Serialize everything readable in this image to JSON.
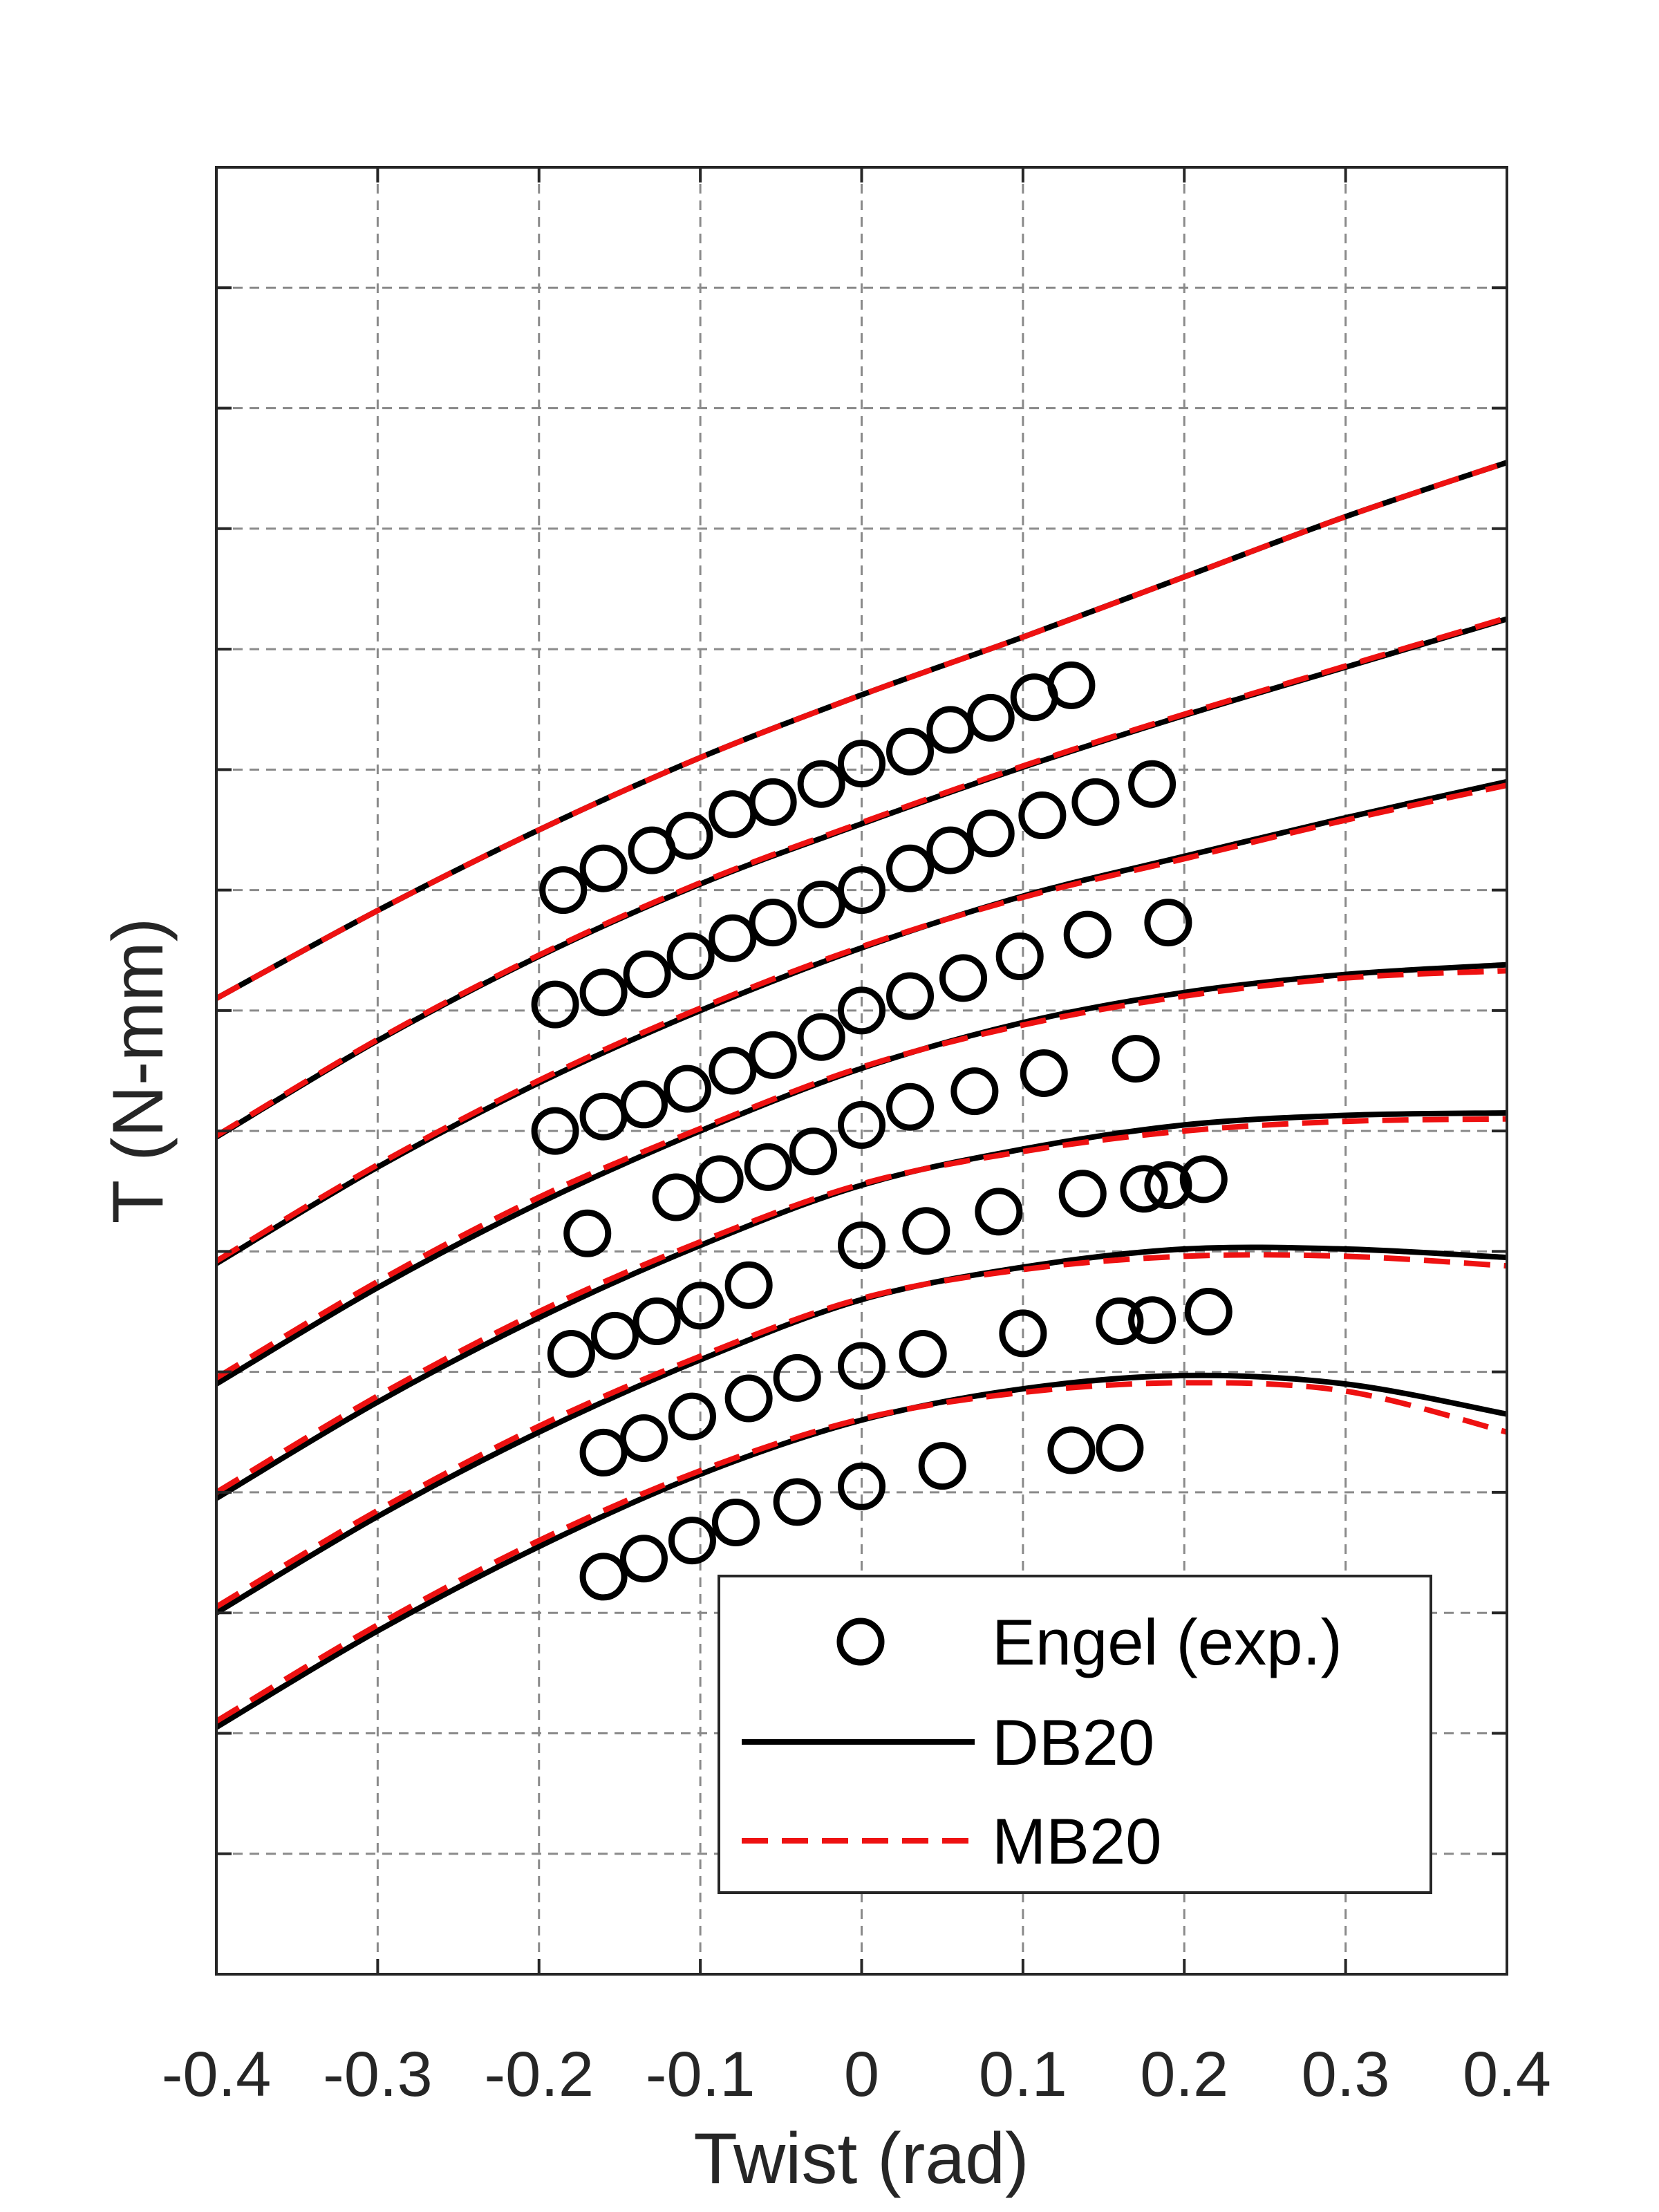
{
  "chart_data": {
    "type": "line",
    "title": "",
    "xlabel": "Twist (rad)",
    "ylabel": "T (N-mm)",
    "xlim": [
      -0.4,
      0.4
    ],
    "ylim": [
      0,
      15
    ],
    "xticks": [
      -0.4,
      -0.3,
      -0.2,
      -0.1,
      0,
      0.1,
      0.2,
      0.3,
      0.4
    ],
    "xtick_labels": [
      "-0.4",
      "-0.3",
      "-0.2",
      "-0.1",
      "0",
      "0.1",
      "0.2",
      "0.3",
      "0.4"
    ],
    "yticks": [
      0,
      1,
      2,
      3,
      4,
      5,
      6,
      7,
      8,
      9,
      10,
      11,
      12,
      13,
      14,
      15
    ],
    "ytick_labels_shown": false,
    "grid": true,
    "legend_position": "bottom-right",
    "legend": [
      {
        "label": "Engel (exp.)",
        "style": "marker-circle",
        "color": "#000000"
      },
      {
        "label": "DB20",
        "style": "solid",
        "color": "#000000"
      },
      {
        "label": "MB20",
        "style": "dashed",
        "color": "#ee1111"
      }
    ],
    "series": [
      {
        "curve": [
          [
            -0.4,
            2.05
          ],
          [
            -0.3,
            2.85
          ],
          [
            -0.2,
            3.55
          ],
          [
            -0.1,
            4.15
          ],
          [
            0,
            4.6
          ],
          [
            0.1,
            4.86
          ],
          [
            0.2,
            4.97
          ],
          [
            0.3,
            4.9
          ],
          [
            0.4,
            4.65
          ]
        ],
        "curve_mb20": [
          [
            -0.4,
            2.1
          ],
          [
            -0.3,
            2.9
          ],
          [
            -0.2,
            3.6
          ],
          [
            -0.1,
            4.18
          ],
          [
            0,
            4.61
          ],
          [
            0.1,
            4.83
          ],
          [
            0.2,
            4.91
          ],
          [
            0.3,
            4.84
          ],
          [
            0.4,
            4.5
          ]
        ],
        "points": [
          [
            -0.16,
            3.3
          ],
          [
            -0.135,
            3.45
          ],
          [
            -0.105,
            3.6
          ],
          [
            -0.078,
            3.75
          ],
          [
            -0.04,
            3.92
          ],
          [
            0,
            4.05
          ],
          [
            0.05,
            4.22
          ],
          [
            0.13,
            4.35
          ],
          [
            0.16,
            4.37
          ]
        ]
      },
      {
        "curve": [
          [
            -0.4,
            3.0
          ],
          [
            -0.3,
            3.8
          ],
          [
            -0.2,
            4.5
          ],
          [
            -0.1,
            5.1
          ],
          [
            0,
            5.6
          ],
          [
            0.1,
            5.87
          ],
          [
            0.2,
            6.02
          ],
          [
            0.3,
            6.02
          ],
          [
            0.4,
            5.95
          ]
        ],
        "curve_mb20": [
          [
            -0.4,
            3.05
          ],
          [
            -0.3,
            3.85
          ],
          [
            -0.2,
            4.55
          ],
          [
            -0.1,
            5.13
          ],
          [
            0,
            5.61
          ],
          [
            0.1,
            5.85
          ],
          [
            0.2,
            5.96
          ],
          [
            0.3,
            5.96
          ],
          [
            0.4,
            5.88
          ]
        ],
        "points": [
          [
            -0.16,
            4.33
          ],
          [
            -0.135,
            4.45
          ],
          [
            -0.105,
            4.63
          ],
          [
            -0.07,
            4.78
          ],
          [
            -0.04,
            4.95
          ],
          [
            0,
            5.05
          ],
          [
            0.038,
            5.15
          ],
          [
            0.1,
            5.32
          ],
          [
            0.16,
            5.42
          ],
          [
            0.18,
            5.43
          ],
          [
            0.215,
            5.5
          ]
        ]
      },
      {
        "curve": [
          [
            -0.4,
            3.95
          ],
          [
            -0.3,
            4.75
          ],
          [
            -0.2,
            5.45
          ],
          [
            -0.1,
            6.05
          ],
          [
            0,
            6.55
          ],
          [
            0.1,
            6.85
          ],
          [
            0.2,
            7.05
          ],
          [
            0.3,
            7.13
          ],
          [
            0.4,
            7.15
          ]
        ],
        "curve_mb20": [
          [
            -0.4,
            4.0
          ],
          [
            -0.3,
            4.8
          ],
          [
            -0.2,
            5.5
          ],
          [
            -0.1,
            6.08
          ],
          [
            0,
            6.56
          ],
          [
            0.1,
            6.83
          ],
          [
            0.2,
            7.0
          ],
          [
            0.3,
            7.08
          ],
          [
            0.4,
            7.1
          ]
        ],
        "points": [
          [
            -0.18,
            5.15
          ],
          [
            -0.153,
            5.3
          ],
          [
            -0.127,
            5.42
          ],
          [
            -0.1,
            5.55
          ],
          [
            -0.07,
            5.72
          ],
          [
            0,
            6.05
          ],
          [
            0.04,
            6.17
          ],
          [
            0.085,
            6.33
          ],
          [
            0.137,
            6.48
          ],
          [
            0.175,
            6.52
          ],
          [
            0.19,
            6.55
          ],
          [
            0.212,
            6.6
          ]
        ]
      },
      {
        "curve": [
          [
            -0.4,
            4.9
          ],
          [
            -0.3,
            5.7
          ],
          [
            -0.2,
            6.4
          ],
          [
            -0.1,
            7.0
          ],
          [
            0,
            7.52
          ],
          [
            0.1,
            7.9
          ],
          [
            0.2,
            8.15
          ],
          [
            0.3,
            8.3
          ],
          [
            0.4,
            8.38
          ]
        ],
        "curve_mb20": [
          [
            -0.4,
            4.95
          ],
          [
            -0.3,
            5.75
          ],
          [
            -0.2,
            6.45
          ],
          [
            -0.1,
            7.02
          ],
          [
            0,
            7.53
          ],
          [
            0.1,
            7.88
          ],
          [
            0.2,
            8.12
          ],
          [
            0.3,
            8.27
          ],
          [
            0.4,
            8.33
          ]
        ],
        "points": [
          [
            -0.17,
            6.15
          ],
          [
            -0.115,
            6.45
          ],
          [
            -0.088,
            6.6
          ],
          [
            -0.058,
            6.7
          ],
          [
            -0.03,
            6.83
          ],
          [
            0,
            7.05
          ],
          [
            0.03,
            7.2
          ],
          [
            0.07,
            7.33
          ],
          [
            0.113,
            7.48
          ],
          [
            0.17,
            7.6
          ]
        ]
      },
      {
        "curve": [
          [
            -0.4,
            5.9
          ],
          [
            -0.3,
            6.7
          ],
          [
            -0.2,
            7.4
          ],
          [
            -0.1,
            8.0
          ],
          [
            0,
            8.52
          ],
          [
            0.1,
            8.95
          ],
          [
            0.2,
            9.28
          ],
          [
            0.3,
            9.6
          ],
          [
            0.4,
            9.9
          ]
        ],
        "curve_mb20": [
          [
            -0.4,
            5.92
          ],
          [
            -0.3,
            6.72
          ],
          [
            -0.2,
            7.42
          ],
          [
            -0.1,
            8.02
          ],
          [
            0,
            8.53
          ],
          [
            0.1,
            8.94
          ],
          [
            0.2,
            9.26
          ],
          [
            0.3,
            9.58
          ],
          [
            0.4,
            9.87
          ]
        ],
        "points": [
          [
            -0.19,
            7.0
          ],
          [
            -0.16,
            7.12
          ],
          [
            -0.135,
            7.22
          ],
          [
            -0.108,
            7.35
          ],
          [
            -0.08,
            7.5
          ],
          [
            -0.055,
            7.63
          ],
          [
            -0.025,
            7.78
          ],
          [
            0,
            8.0
          ],
          [
            0.03,
            8.12
          ],
          [
            0.063,
            8.27
          ],
          [
            0.098,
            8.45
          ],
          [
            0.14,
            8.63
          ],
          [
            0.19,
            8.73
          ]
        ]
      },
      {
        "curve": [
          [
            -0.4,
            6.95
          ],
          [
            -0.3,
            7.75
          ],
          [
            -0.2,
            8.45
          ],
          [
            -0.1,
            9.05
          ],
          [
            0,
            9.55
          ],
          [
            0.1,
            10.02
          ],
          [
            0.2,
            10.45
          ],
          [
            0.3,
            10.85
          ],
          [
            0.4,
            11.25
          ]
        ],
        "curve_mb20": [
          [
            -0.4,
            6.96
          ],
          [
            -0.3,
            7.76
          ],
          [
            -0.2,
            8.46
          ],
          [
            -0.1,
            9.06
          ],
          [
            0,
            9.56
          ],
          [
            0.1,
            10.03
          ],
          [
            0.2,
            10.46
          ],
          [
            0.3,
            10.86
          ],
          [
            0.4,
            11.26
          ]
        ],
        "points": [
          [
            -0.19,
            8.05
          ],
          [
            -0.16,
            8.15
          ],
          [
            -0.133,
            8.3
          ],
          [
            -0.106,
            8.45
          ],
          [
            -0.08,
            8.6
          ],
          [
            -0.055,
            8.73
          ],
          [
            -0.025,
            8.88
          ],
          [
            0,
            9.0
          ],
          [
            0.03,
            9.18
          ],
          [
            0.055,
            9.33
          ],
          [
            0.08,
            9.47
          ],
          [
            0.112,
            9.62
          ],
          [
            0.145,
            9.73
          ],
          [
            0.18,
            9.88
          ]
        ]
      },
      {
        "curve": [
          [
            -0.4,
            8.1
          ],
          [
            -0.3,
            8.83
          ],
          [
            -0.2,
            9.5
          ],
          [
            -0.1,
            10.1
          ],
          [
            0,
            10.62
          ],
          [
            0.1,
            11.1
          ],
          [
            0.2,
            11.6
          ],
          [
            0.3,
            12.1
          ],
          [
            0.4,
            12.55
          ]
        ],
        "curve_mb20": [
          [
            -0.4,
            8.1
          ],
          [
            -0.3,
            8.83
          ],
          [
            -0.2,
            9.5
          ],
          [
            -0.1,
            10.1
          ],
          [
            0,
            10.62
          ],
          [
            0.1,
            11.1
          ],
          [
            0.2,
            11.6
          ],
          [
            0.3,
            12.1
          ],
          [
            0.4,
            12.55
          ]
        ],
        "points": [
          [
            -0.185,
            9.0
          ],
          [
            -0.16,
            9.18
          ],
          [
            -0.13,
            9.33
          ],
          [
            -0.107,
            9.45
          ],
          [
            -0.08,
            9.63
          ],
          [
            -0.055,
            9.73
          ],
          [
            -0.025,
            9.88
          ],
          [
            0,
            10.05
          ],
          [
            0.03,
            10.15
          ],
          [
            0.055,
            10.33
          ],
          [
            0.08,
            10.43
          ],
          [
            0.107,
            10.6
          ],
          [
            0.13,
            10.7
          ]
        ]
      }
    ]
  }
}
